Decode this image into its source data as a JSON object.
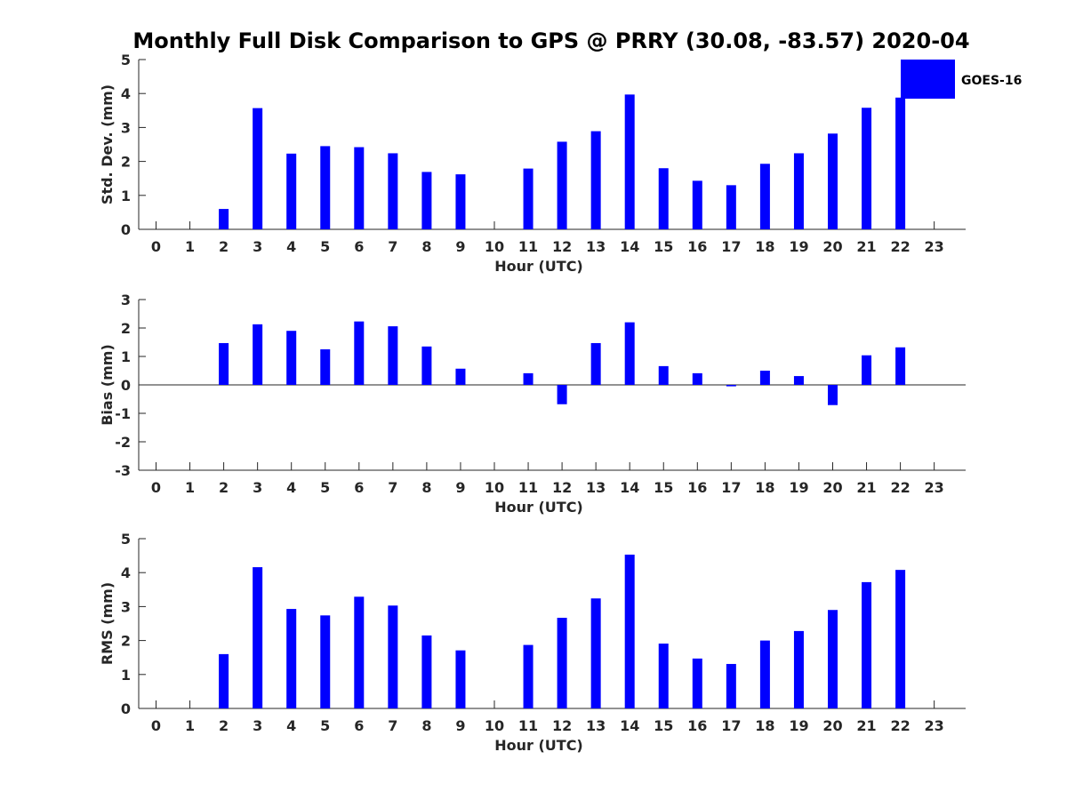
{
  "figure": {
    "title": "Monthly Full Disk Comparison to GPS @ PRRY (30.08, -83.57) 2020-04"
  },
  "legend": {
    "label": "GOES-16",
    "color": "#0000ff",
    "placement": "top-right"
  },
  "chart_data": [
    {
      "type": "bar",
      "xlabel": "Hour (UTC)",
      "ylabel": "Std. Dev. (mm)",
      "ylim": [
        0,
        5
      ],
      "yticks": [
        0,
        1,
        2,
        3,
        4,
        5
      ],
      "categories": [
        "0",
        "1",
        "2",
        "3",
        "4",
        "5",
        "6",
        "7",
        "8",
        "9",
        "10",
        "11",
        "12",
        "13",
        "14",
        "15",
        "16",
        "17",
        "18",
        "19",
        "20",
        "21",
        "22",
        "23"
      ],
      "series": [
        {
          "name": "GOES-16",
          "values": [
            null,
            null,
            0.6,
            3.57,
            2.23,
            2.45,
            2.42,
            2.24,
            1.69,
            1.62,
            null,
            1.79,
            2.58,
            2.89,
            3.97,
            1.8,
            1.43,
            1.3,
            1.93,
            2.24,
            2.82,
            3.58,
            3.88,
            null
          ]
        }
      ]
    },
    {
      "type": "bar",
      "xlabel": "Hour (UTC)",
      "ylabel": "Bias (mm)",
      "ylim": [
        -3,
        3
      ],
      "yticks": [
        -3,
        -2,
        -1,
        0,
        1,
        2,
        3
      ],
      "categories": [
        "0",
        "1",
        "2",
        "3",
        "4",
        "5",
        "6",
        "7",
        "8",
        "9",
        "10",
        "11",
        "12",
        "13",
        "14",
        "15",
        "16",
        "17",
        "18",
        "19",
        "20",
        "21",
        "22",
        "23"
      ],
      "series": [
        {
          "name": "GOES-16",
          "values": [
            null,
            null,
            1.47,
            2.13,
            1.9,
            1.25,
            2.23,
            2.06,
            1.35,
            0.57,
            null,
            0.41,
            -0.68,
            1.47,
            2.2,
            0.66,
            0.41,
            -0.05,
            0.5,
            0.31,
            -0.71,
            1.04,
            1.32,
            null
          ]
        }
      ]
    },
    {
      "type": "bar",
      "xlabel": "Hour (UTC)",
      "ylabel": "RMS (mm)",
      "ylim": [
        0,
        5
      ],
      "yticks": [
        0,
        1,
        2,
        3,
        4,
        5
      ],
      "categories": [
        "0",
        "1",
        "2",
        "3",
        "4",
        "5",
        "6",
        "7",
        "8",
        "9",
        "10",
        "11",
        "12",
        "13",
        "14",
        "15",
        "16",
        "17",
        "18",
        "19",
        "20",
        "21",
        "22",
        "23"
      ],
      "series": [
        {
          "name": "GOES-16",
          "values": [
            null,
            null,
            1.6,
            4.16,
            2.93,
            2.74,
            3.29,
            3.03,
            2.15,
            1.71,
            null,
            1.87,
            2.67,
            3.24,
            4.53,
            1.91,
            1.47,
            1.31,
            2.0,
            2.28,
            2.9,
            3.72,
            4.08,
            null
          ]
        }
      ]
    }
  ]
}
